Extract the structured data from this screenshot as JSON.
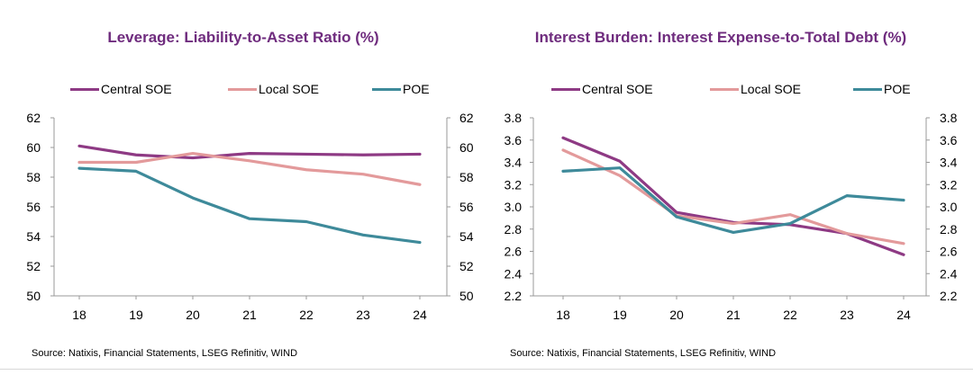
{
  "chart_data": [
    {
      "type": "line",
      "title": "Leverage: Liability-to-Asset Ratio (%)",
      "categories": [
        "18",
        "19",
        "20",
        "21",
        "22",
        "23",
        "24"
      ],
      "series": [
        {
          "name": "Central SOE",
          "color": "#8e3a84",
          "values": [
            60.1,
            59.5,
            59.3,
            59.6,
            59.55,
            59.5,
            59.55
          ]
        },
        {
          "name": "Local SOE",
          "color": "#e39a9b",
          "values": [
            59.0,
            59.0,
            59.6,
            59.1,
            58.5,
            58.2,
            57.5
          ]
        },
        {
          "name": "POE",
          "color": "#3e8a9a",
          "values": [
            58.6,
            58.4,
            56.6,
            55.2,
            55.0,
            54.1,
            53.6
          ]
        }
      ],
      "ylim": [
        50,
        62
      ],
      "yticks": [
        "50",
        "52",
        "54",
        "56",
        "58",
        "60",
        "62"
      ],
      "xlabel": "",
      "ylabel": "",
      "source": "Source: Natixis, Financial Statements, LSEG Refinitiv, WIND"
    },
    {
      "type": "line",
      "title": "Interest Burden: Interest Expense-to-Total Debt (%)",
      "categories": [
        "18",
        "19",
        "20",
        "21",
        "22",
        "23",
        "24"
      ],
      "series": [
        {
          "name": "Central SOE",
          "color": "#8e3a84",
          "values": [
            3.62,
            3.41,
            2.95,
            2.86,
            2.84,
            2.76,
            2.57
          ]
        },
        {
          "name": "Local SOE",
          "color": "#e39a9b",
          "values": [
            3.51,
            3.28,
            2.92,
            2.85,
            2.93,
            2.76,
            2.67
          ]
        },
        {
          "name": "POE",
          "color": "#3e8a9a",
          "values": [
            3.32,
            3.35,
            2.91,
            2.77,
            2.85,
            3.1,
            3.06
          ]
        }
      ],
      "ylim": [
        2.2,
        3.8
      ],
      "yticks": [
        "2.2",
        "2.4",
        "2.6",
        "2.8",
        "3.0",
        "3.2",
        "3.4",
        "3.6",
        "3.8"
      ],
      "xlabel": "",
      "ylabel": "",
      "source": "Source: Natixis, Financial Statements, LSEG Refinitiv, WIND"
    }
  ]
}
